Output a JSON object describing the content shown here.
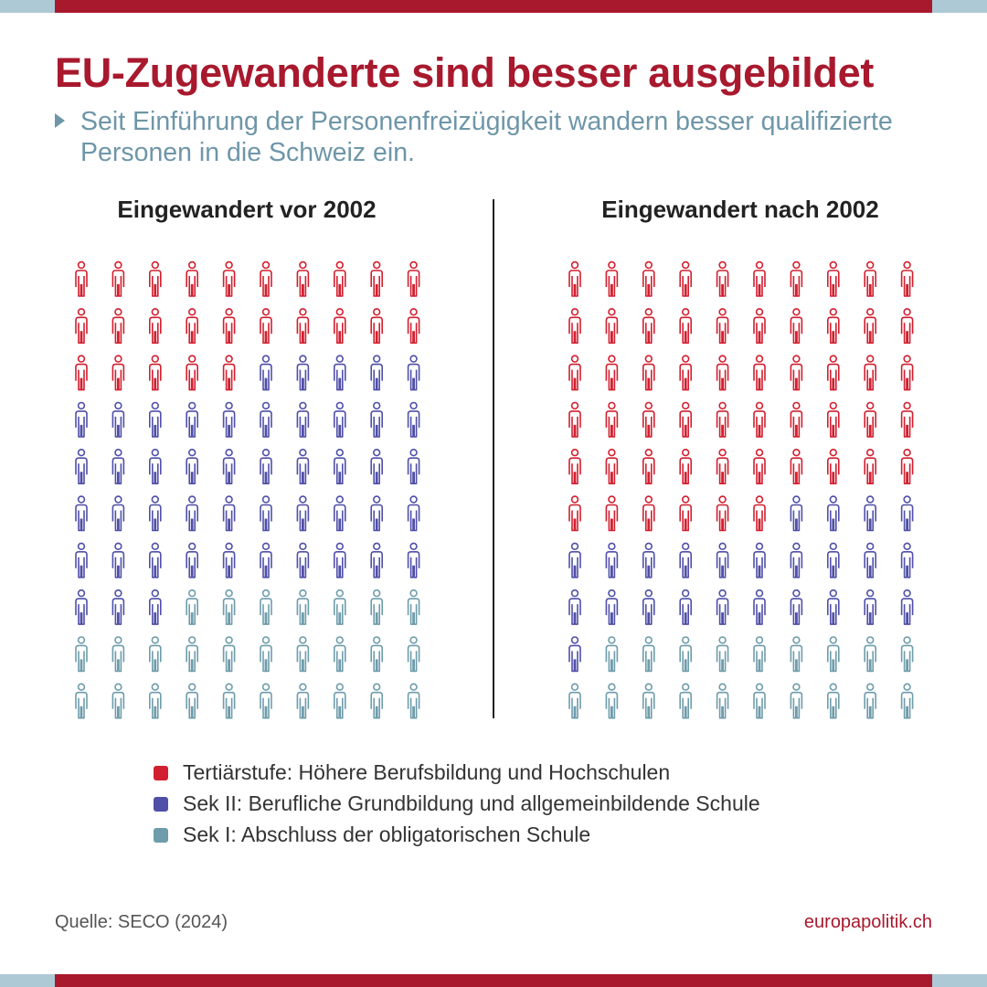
{
  "title": "EU-Zugewanderte sind besser ausgebildet",
  "subtitle": "Seit Einführung der Personenfreizügigkeit wandern besser qualifizierte Personen in die Schweiz ein.",
  "colors": {
    "brand": "#a8192e",
    "accent_bar": "#adc9d6",
    "subtitle": "#6e96a8",
    "tertiary": "#d21f2f",
    "sek2": "#4f4fa8",
    "sek1": "#6e9cab"
  },
  "chart_data": {
    "type": "pictogram",
    "units_per_panel": 100,
    "panels": [
      {
        "label": "Eingewandert vor 2002",
        "counts": {
          "tertiary": 25,
          "sek2": 48,
          "sek1": 27
        }
      },
      {
        "label": "Eingewandert nach 2002",
        "counts": {
          "tertiary": 56,
          "sek2": 25,
          "sek1": 19
        }
      }
    ],
    "legend": [
      {
        "key": "tertiary",
        "label": "Tertiärstufe: Höhere Berufsbildung und Hochschulen"
      },
      {
        "key": "sek2",
        "label": "Sek II: Berufliche Grundbildung und allgemeinbildende Schule"
      },
      {
        "key": "sek1",
        "label": "Sek I: Abschluss der obligatorischen Schule"
      }
    ]
  },
  "footer": {
    "source": "Quelle: SECO (2024)",
    "site": "europapolitik.ch"
  }
}
